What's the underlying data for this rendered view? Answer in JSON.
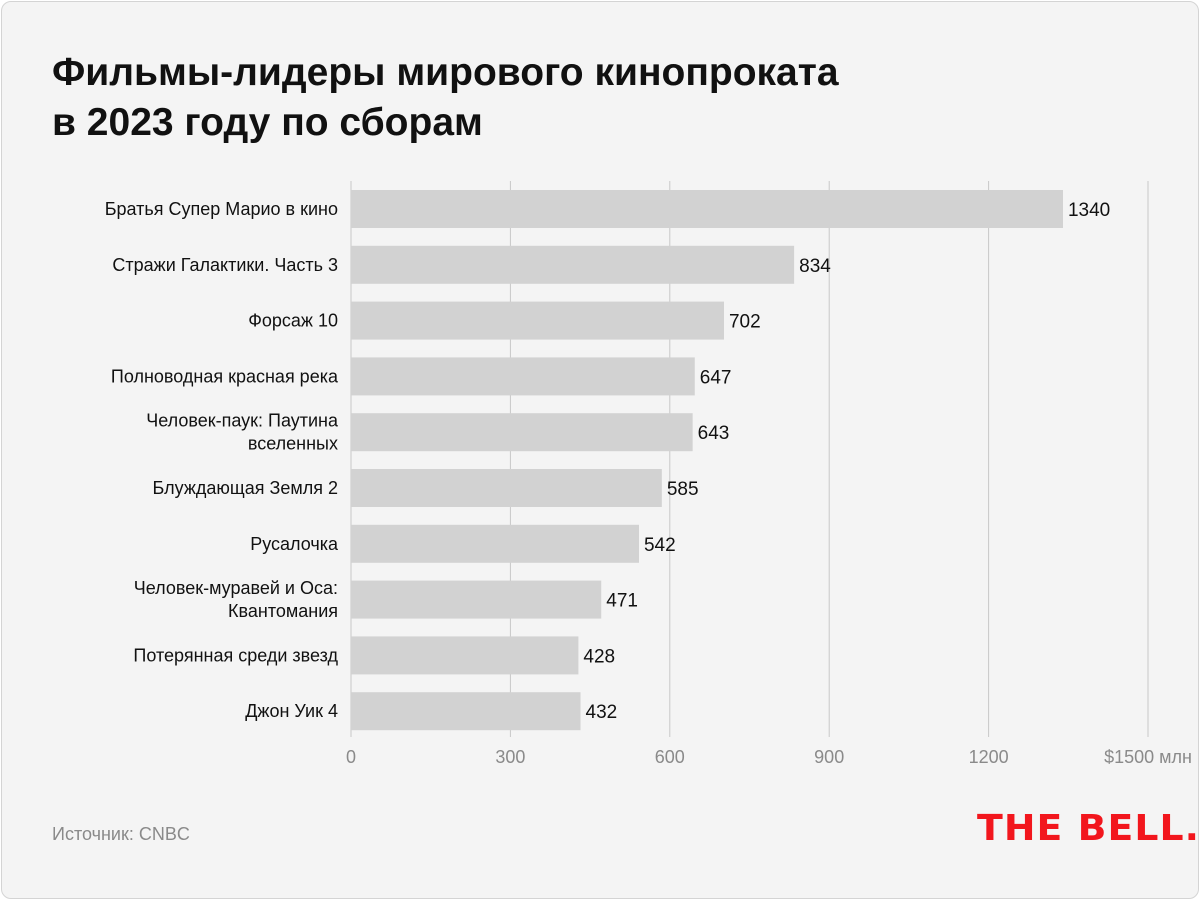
{
  "title_lines": [
    "Фильмы-лидеры мирового кинопроката",
    "в 2023 году по сборам"
  ],
  "source": "Источник: CNBC",
  "logo": "THE BELL.",
  "colors": {
    "bar": "#d2d2d2",
    "grid": "#c8c8c8",
    "logo": "#f2161d",
    "background": "#f4f4f4"
  },
  "chart_data": {
    "type": "bar",
    "orientation": "horizontal",
    "title": "Фильмы-лидеры мирового кинопроката в 2023 году по сборам",
    "categories": [
      [
        "Братья Супер Марио в кино"
      ],
      [
        "Стражи Галактики. Часть 3"
      ],
      [
        "Форсаж 10"
      ],
      [
        "Полноводная красная река"
      ],
      [
        "Человек-паук: Паутина",
        "вселенных"
      ],
      [
        "Блуждающая Земля 2"
      ],
      [
        "Русалочка"
      ],
      [
        "Человек-муравей и Оса:",
        "Квантомания"
      ],
      [
        "Потерянная среди звезд"
      ],
      [
        "Джон Уик 4"
      ]
    ],
    "values": [
      1340,
      834,
      702,
      647,
      643,
      585,
      542,
      471,
      428,
      432
    ],
    "xlim": [
      0,
      1500
    ],
    "xticks": [
      0,
      300,
      600,
      900,
      1200,
      1500
    ],
    "xtick_labels": [
      "0",
      "300",
      "600",
      "900",
      "1200",
      "$1500 млн"
    ],
    "unit": "млн $",
    "grid": true
  }
}
